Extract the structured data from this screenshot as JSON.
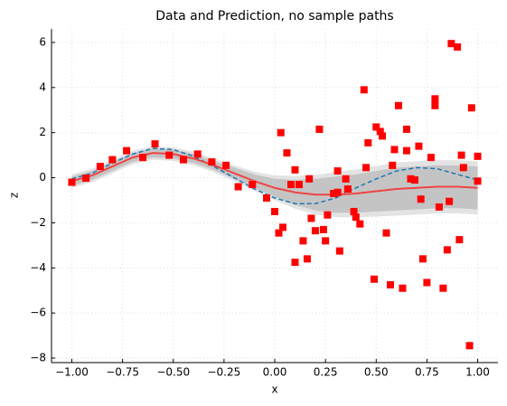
{
  "chart_data": {
    "type": "scatter",
    "title": "Data and Prediction, no sample paths",
    "x_label": "x",
    "y_label": "z",
    "xlim": [
      -1.1,
      1.1
    ],
    "ylim": [
      -8.2,
      6.6
    ],
    "xticks": [
      {
        "value": -1,
        "label": "−1.00"
      },
      {
        "value": -0.75,
        "label": "−0.75"
      },
      {
        "value": -0.5,
        "label": "−0.50"
      },
      {
        "value": -0.25,
        "label": "−0.25"
      },
      {
        "value": 0,
        "label": "0.00"
      },
      0.25,
      {
        "value": 0.5,
        "label": "0.50"
      },
      0.75,
      {
        "value": 1,
        "label": "1.00"
      }
    ],
    "yticks": [
      {
        "value": -8,
        "label": "−8"
      },
      {
        "value": -6,
        "label": "−6"
      },
      {
        "value": -4,
        "label": "−4"
      },
      {
        "value": -2,
        "label": "−2"
      },
      0,
      2,
      4,
      6
    ],
    "grid": true,
    "x": [
      -1.0,
      -0.93,
      -0.86,
      -0.8,
      -0.73,
      -0.65,
      -0.59,
      -0.52,
      -0.45,
      -0.38,
      -0.31,
      -0.24,
      -0.18,
      -0.11,
      -0.04,
      0.0,
      0.02,
      0.03,
      0.04,
      0.06,
      0.08,
      0.1,
      0.1,
      0.12,
      0.14,
      0.16,
      0.17,
      0.18,
      0.2,
      0.22,
      0.24,
      0.25,
      0.26,
      0.29,
      0.31,
      0.31,
      0.32,
      0.35,
      0.36,
      0.39,
      0.4,
      0.42,
      0.44,
      0.45,
      0.46,
      0.49,
      0.5,
      0.52,
      0.53,
      0.55,
      0.57,
      0.58,
      0.59,
      0.61,
      0.63,
      0.65,
      0.65,
      0.67,
      0.69,
      0.71,
      0.72,
      0.73,
      0.75,
      0.77,
      0.79,
      0.79,
      0.81,
      0.83,
      0.85,
      0.86,
      0.87,
      0.9,
      0.91,
      0.92,
      0.93,
      0.96,
      0.97,
      1.0,
      1.0
    ],
    "values": [
      -0.2,
      -0.02,
      0.5,
      0.8,
      1.2,
      0.9,
      1.5,
      1.0,
      0.8,
      1.05,
      0.7,
      0.55,
      -0.4,
      -0.3,
      -0.9,
      -1.5,
      -2.45,
      2.0,
      -2.2,
      1.1,
      -0.3,
      -3.75,
      0.35,
      -0.3,
      -2.8,
      -3.6,
      -0.05,
      -1.8,
      -2.35,
      2.15,
      -2.3,
      -2.8,
      -1.65,
      -0.7,
      0.3,
      -0.65,
      -3.25,
      -0.05,
      -0.5,
      -1.5,
      -1.75,
      -2.05,
      3.9,
      0.45,
      1.55,
      -4.5,
      2.25,
      2.05,
      1.85,
      -2.45,
      -4.75,
      0.55,
      1.25,
      3.2,
      -4.9,
      2.15,
      1.2,
      -0.05,
      -0.1,
      1.4,
      -0.95,
      -3.6,
      -4.65,
      0.9,
      3.5,
      3.2,
      -1.3,
      -4.9,
      -3.2,
      -1.05,
      5.95,
      5.8,
      -2.75,
      1.0,
      0.45,
      -7.45,
      3.1,
      0.95,
      -0.15
    ],
    "color": "#ff0000",
    "x_grid": [
      -1.0,
      -0.9,
      -0.8,
      -0.7,
      -0.6,
      -0.5,
      -0.4,
      -0.3,
      -0.2,
      -0.1,
      0.0,
      0.1,
      0.2,
      0.3,
      0.4,
      0.5,
      0.6,
      0.7,
      0.8,
      0.9,
      1.0
    ],
    "bands": [
      {
        "color": "#e3e3e3",
        "lower": [
          -0.45,
          -0.2,
          0.2,
          0.6,
          0.8,
          0.75,
          0.55,
          0.25,
          -0.15,
          -0.57,
          -1.0,
          -1.37,
          -1.63,
          -1.75,
          -1.77,
          -1.72,
          -1.68,
          -1.63,
          -1.58,
          -1.58,
          -1.63
        ],
        "upper": [
          0.15,
          0.4,
          0.8,
          1.2,
          1.4,
          1.35,
          1.15,
          0.85,
          0.55,
          0.27,
          0.1,
          0.07,
          0.13,
          0.25,
          0.37,
          0.52,
          0.68,
          0.73,
          0.78,
          0.78,
          0.73
        ]
      },
      {
        "color": "#c4c4c4",
        "lower": [
          -0.35,
          -0.1,
          0.3,
          0.7,
          0.9,
          0.85,
          0.65,
          0.35,
          -0.05,
          -0.45,
          -0.85,
          -1.2,
          -1.45,
          -1.55,
          -1.55,
          -1.5,
          -1.45,
          -1.4,
          -1.35,
          -1.35,
          -1.4
        ],
        "upper": [
          0.05,
          0.3,
          0.7,
          1.1,
          1.3,
          1.25,
          1.05,
          0.75,
          0.45,
          0.15,
          -0.05,
          -0.1,
          -0.05,
          0.05,
          0.15,
          0.3,
          0.45,
          0.5,
          0.55,
          0.55,
          0.5
        ]
      }
    ],
    "lines": [
      {
        "color": "#1f77b4",
        "dashed": true,
        "values": [
          -0.05,
          0.2,
          0.65,
          1.05,
          1.3,
          1.25,
          0.95,
          0.5,
          0.0,
          -0.5,
          -0.9,
          -1.15,
          -1.15,
          -0.9,
          -0.45,
          -0.05,
          0.3,
          0.45,
          0.4,
          0.15,
          -0.1
        ]
      },
      {
        "color": "#ee4444",
        "dashed": false,
        "values": [
          -0.15,
          0.1,
          0.5,
          0.9,
          1.1,
          1.05,
          0.85,
          0.55,
          0.2,
          -0.15,
          -0.45,
          -0.65,
          -0.75,
          -0.75,
          -0.7,
          -0.6,
          -0.5,
          -0.45,
          -0.4,
          -0.4,
          -0.45
        ]
      }
    ]
  }
}
